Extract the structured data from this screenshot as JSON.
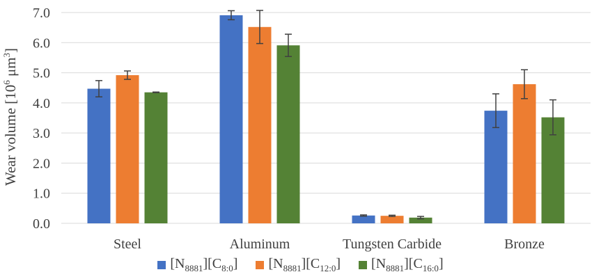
{
  "chart_data": {
    "type": "bar",
    "title": "",
    "xlabel": "",
    "ylabel": "Wear volume [10",
    "ylabel_sup1": "6",
    "ylabel_mid": " μm",
    "ylabel_sup2": "3",
    "ylabel_end": "]",
    "ylim": [
      0,
      7
    ],
    "yticks": [
      "0.0",
      "1.0",
      "2.0",
      "3.0",
      "4.0",
      "5.0",
      "6.0",
      "7.0"
    ],
    "grid": true,
    "legend_position": "bottom",
    "categories": [
      "Steel",
      "Aluminum",
      "Tungsten Carbide",
      "Bronze"
    ],
    "series": [
      {
        "name": "[N8881][C8:0]",
        "name_parts": [
          "[N",
          "8881",
          "][C",
          "8:0",
          "]"
        ],
        "color": "#4472C4",
        "values": [
          4.47,
          6.91,
          0.26,
          3.74
        ],
        "errors": [
          0.27,
          0.15,
          0.02,
          0.56
        ]
      },
      {
        "name": "[N8881][C12:0]",
        "name_parts": [
          "[N",
          "8881",
          "][C",
          "12:0",
          "]"
        ],
        "color": "#ED7D31",
        "values": [
          4.92,
          6.52,
          0.25,
          4.62
        ],
        "errors": [
          0.14,
          0.55,
          0.02,
          0.48
        ]
      },
      {
        "name": "[N8881][C16:0]",
        "name_parts": [
          "[N",
          "8881",
          "][C",
          "16:0",
          "]"
        ],
        "color": "#548235",
        "values": [
          4.35,
          5.91,
          0.19,
          3.52
        ],
        "errors": [
          0.01,
          0.37,
          0.04,
          0.58
        ]
      }
    ]
  }
}
